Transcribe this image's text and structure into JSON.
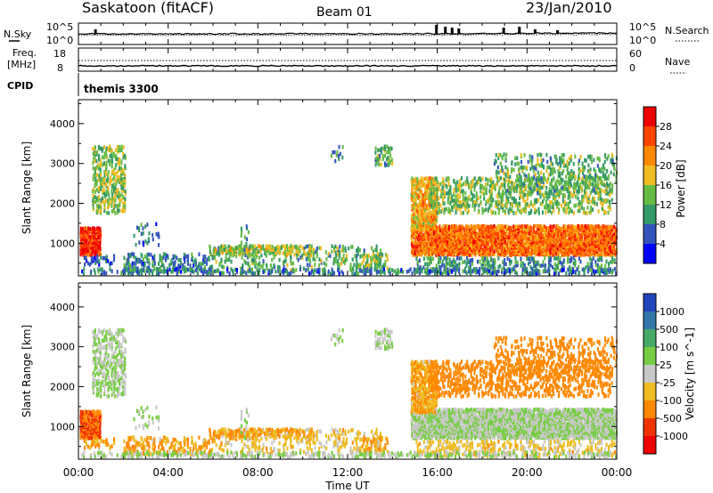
{
  "header": {
    "station": "Saskatoon (fitACF)",
    "beam": "Beam 01",
    "date": "23/Jan/2010"
  },
  "strips": {
    "nsky_label": "N.Sky",
    "nsearch_label": "N.Search",
    "count_top_label": "10^5",
    "count_bottom_label": "10^0",
    "freq_label": "Freq.",
    "freq_unit": "[MHz]",
    "freq_top": "18",
    "freq_bottom": "8",
    "nave_label": "Nave",
    "nave_top": "60",
    "nave_bottom": "0",
    "cpid_label": "CPID",
    "cpid_value": "themis 3300"
  },
  "chart_data": [
    {
      "type": "heatmap",
      "name": "power",
      "ylabel": "Slant Range [km]",
      "ylim": [
        180,
        4600
      ],
      "yticks": [
        1000,
        2000,
        3000,
        4000
      ],
      "xlim": [
        0,
        24
      ],
      "colorbar": {
        "label": "Power [dB]",
        "ticks": [
          "4",
          "8",
          "12",
          "16",
          "20",
          "24",
          "28"
        ],
        "colors": [
          "#0000ff",
          "#3355bb",
          "#339966",
          "#66bb44",
          "#eebb22",
          "#ff8800",
          "#ff4400",
          "#ee0000"
        ],
        "range": [
          0,
          32
        ]
      }
    },
    {
      "type": "heatmap",
      "name": "velocity",
      "ylabel": "Slant Range [km]",
      "ylim": [
        180,
        4600
      ],
      "yticks": [
        1000,
        2000,
        3000,
        4000
      ],
      "xlim": [
        0,
        24
      ],
      "xlabel": "Time UT",
      "xticks": [
        "00:00",
        "04:00",
        "08:00",
        "12:00",
        "16:00",
        "20:00",
        "00:00"
      ],
      "colorbar": {
        "label": "Velocity [m s^-1]",
        "ticks": [
          "1000",
          "500",
          "100",
          "25",
          "-25",
          "-100",
          "-500",
          "-1000"
        ],
        "colors": [
          "#2244bb",
          "#3377aa",
          "#44aa66",
          "#77cc44",
          "#c8c8c8",
          "#eebb22",
          "#ff8800",
          "#ee3300",
          "#ee0000"
        ]
      }
    }
  ]
}
